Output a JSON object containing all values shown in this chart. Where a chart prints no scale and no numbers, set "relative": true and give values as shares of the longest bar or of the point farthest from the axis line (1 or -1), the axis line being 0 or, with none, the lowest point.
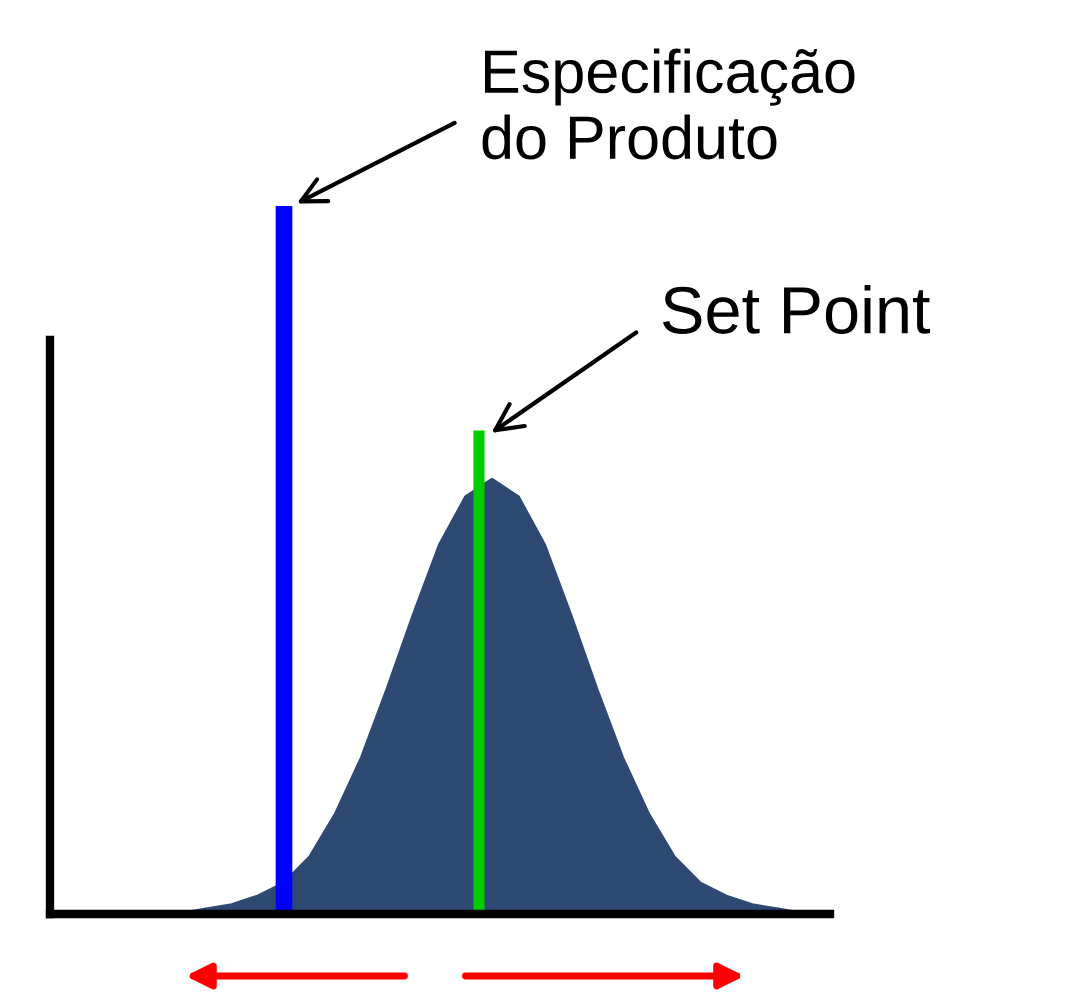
{
  "chart_data": {
    "type": "area",
    "relative": true,
    "categories": [
      null,
      null,
      null,
      null,
      null,
      null,
      null,
      null,
      null,
      null,
      null,
      null,
      null,
      null,
      null,
      null,
      null,
      null,
      null,
      null,
      null,
      null,
      null,
      null,
      null,
      null,
      null,
      null,
      null,
      null,
      null
    ],
    "values": [
      0,
      0,
      0,
      0,
      0,
      0,
      0.01,
      0.02,
      0.04,
      0.07,
      0.13,
      0.23,
      0.36,
      0.52,
      0.69,
      0.85,
      0.96,
      1,
      0.96,
      0.85,
      0.69,
      0.52,
      0.36,
      0.23,
      0.13,
      0.07,
      0.04,
      0.02,
      0.01,
      0,
      0
    ],
    "color": "#2e4a72",
    "annotations": [
      "Especificação\ndo Produto",
      "Set Point"
    ],
    "grid": false,
    "legend": false
  }
}
